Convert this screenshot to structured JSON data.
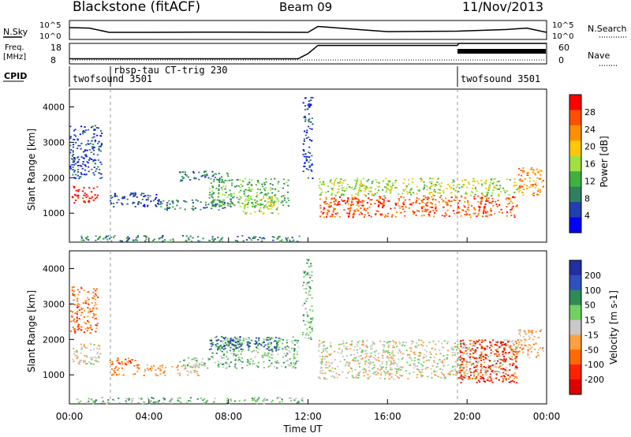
{
  "header": {
    "station": "Blackstone (fitACF)",
    "beam": "Beam 09",
    "date": "11/Nov/2013"
  },
  "top_panels": {
    "noise_left_label": "N.Sky",
    "noise_right_label": "N.Search",
    "noise_left_ticks": [
      "10^5",
      "10^0"
    ],
    "noise_right_ticks": [
      "10^5",
      "10^0"
    ],
    "freq_label": "Freq.",
    "freq_unit": "[MHz]",
    "freq_ticks": [
      "18",
      "8"
    ],
    "nave_label": "Nave",
    "nave_ticks": [
      "60",
      "0"
    ],
    "cpid_label": "CPID",
    "cpid_segments": [
      {
        "label": "twofsound 3501",
        "start": 0.0,
        "end": 1.75
      },
      {
        "label": "rbsp-tau CT-trig 230",
        "start": 1.75,
        "end": 19.5
      },
      {
        "label": "twofsound 3501",
        "start": 19.5,
        "end": 24.0
      }
    ]
  },
  "axes": {
    "x_ticks": [
      "00:00",
      "04:00",
      "08:00",
      "12:00",
      "16:00",
      "20:00",
      "00:00"
    ],
    "x_label": "Time UT",
    "y_ticks": [
      "1000",
      "2000",
      "3000",
      "4000"
    ],
    "y_label": "Slant Range [km]"
  },
  "colorbars": {
    "power": {
      "label": "Power [dB]",
      "ticks": [
        "28",
        "24",
        "20",
        "16",
        "12",
        "8",
        "4"
      ],
      "colors": [
        "#ff0000",
        "#ff5000",
        "#ff9000",
        "#ffc800",
        "#a0e040",
        "#40b040",
        "#308060",
        "#2040b0",
        "#0000ff"
      ]
    },
    "velocity": {
      "label": "Velocity [m s-1]",
      "ticks": [
        "200",
        "100",
        "50",
        "15",
        "-15",
        "-50",
        "-100",
        "-200"
      ],
      "colors": [
        "#2030a0",
        "#3050c0",
        "#2e8b57",
        "#70d060",
        "#c8c8c8",
        "#ffa040",
        "#ff6a00",
        "#ff2000",
        "#e00000"
      ]
    }
  },
  "chart_data": [
    {
      "type": "line",
      "title": "N.Sky / N.Search",
      "x": [
        0,
        1,
        2,
        4,
        8,
        12,
        12.5,
        14.5,
        16,
        19.5,
        22,
        23,
        24
      ],
      "series": [
        {
          "name": "N.Sky",
          "values": [
            5.0,
            4.8,
            3.0,
            3.0,
            3.1,
            3.0,
            5.5,
            4.2,
            3.3,
            3.5,
            4.2,
            4.8,
            3.0
          ]
        }
      ],
      "xlim": [
        0,
        24
      ],
      "ylim": [
        0,
        8
      ]
    },
    {
      "type": "line",
      "title": "Freq. / Nave",
      "x": [
        0,
        11.5,
        12,
        12.5,
        19.5,
        19.6,
        24
      ],
      "series": [
        {
          "name": "Freq.",
          "values": [
            10.5,
            10.5,
            13,
            17,
            17,
            18,
            18
          ]
        }
      ],
      "xlim": [
        0,
        24
      ],
      "ylim": [
        8,
        18
      ]
    },
    {
      "type": "heatmap",
      "title": "Power",
      "x_range_hours": [
        0,
        24
      ],
      "y_range_km": [
        180,
        4500
      ],
      "regions": [
        {
          "t0": 0.1,
          "t1": 1.4,
          "r0": 1300,
          "r1": 1800,
          "level": 0
        },
        {
          "t0": 0.0,
          "t1": 1.6,
          "r0": 2000,
          "r1": 3500,
          "level": 7
        },
        {
          "t0": 2.0,
          "t1": 4.5,
          "r0": 1200,
          "r1": 1600,
          "level": 7
        },
        {
          "t0": 4.5,
          "t1": 8.0,
          "r0": 1100,
          "r1": 1400,
          "level": 6
        },
        {
          "t0": 7.0,
          "t1": 11.0,
          "r0": 1200,
          "r1": 2000,
          "level": 5
        },
        {
          "t0": 8.5,
          "t1": 10.5,
          "r0": 1000,
          "r1": 1500,
          "level": 4
        },
        {
          "t0": 5.5,
          "t1": 8.0,
          "r0": 1900,
          "r1": 2200,
          "level": 6
        },
        {
          "t0": 12.5,
          "t1": 22.5,
          "r0": 900,
          "r1": 1500,
          "level": 1
        },
        {
          "t0": 12.5,
          "t1": 22.5,
          "r0": 1500,
          "r1": 2000,
          "level": 4
        },
        {
          "t0": 22.5,
          "t1": 23.8,
          "r0": 1500,
          "r1": 2300,
          "level": 2
        },
        {
          "t0": 0.3,
          "t1": 11.8,
          "r0": 200,
          "r1": 380,
          "level": 6
        },
        {
          "t0": 11.7,
          "t1": 12.2,
          "r0": 2000,
          "r1": 4300,
          "level": 7
        }
      ]
    },
    {
      "type": "heatmap",
      "title": "Velocity",
      "x_range_hours": [
        0,
        24
      ],
      "y_range_km": [
        180,
        4500
      ],
      "regions": [
        {
          "t0": 0.1,
          "t1": 1.6,
          "r0": 1300,
          "r1": 1900,
          "level": 4
        },
        {
          "t0": 0.0,
          "t1": 1.4,
          "r0": 2200,
          "r1": 3500,
          "level": 6
        },
        {
          "t0": 2.0,
          "t1": 3.5,
          "r0": 1000,
          "r1": 1500,
          "level": 6
        },
        {
          "t0": 3.5,
          "t1": 6.5,
          "r0": 1000,
          "r1": 1300,
          "level": 5
        },
        {
          "t0": 5.5,
          "t1": 7.0,
          "r0": 1200,
          "r1": 1500,
          "level": 3
        },
        {
          "t0": 7.0,
          "t1": 11.5,
          "r0": 1200,
          "r1": 2100,
          "level": 3
        },
        {
          "t0": 7.0,
          "t1": 10.5,
          "r0": 1700,
          "r1": 2100,
          "level": 1
        },
        {
          "t0": 12.5,
          "t1": 22.5,
          "r0": 900,
          "r1": 2000,
          "level": 4
        },
        {
          "t0": 19.5,
          "t1": 22.5,
          "r0": 800,
          "r1": 2000,
          "level": 7
        },
        {
          "t0": 22.5,
          "t1": 23.8,
          "r0": 1500,
          "r1": 2300,
          "level": 5
        },
        {
          "t0": 0.3,
          "t1": 11.8,
          "r0": 200,
          "r1": 380,
          "level": 3
        },
        {
          "t0": 11.7,
          "t1": 12.2,
          "r0": 2000,
          "r1": 4300,
          "level": 3
        }
      ]
    }
  ]
}
